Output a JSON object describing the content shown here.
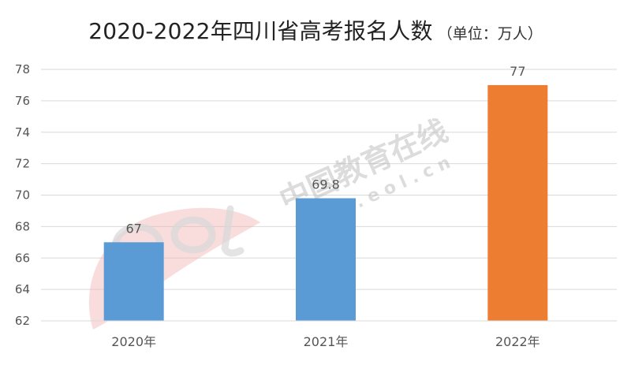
{
  "title": "2020-2022年四川省高考报名人数",
  "unit_note": "（单位：万人）",
  "watermark": {
    "cn": "中国教育在线",
    "url": "w w w . e o l . c n",
    "logo_text": "eol"
  },
  "chart_data": {
    "type": "bar",
    "categories": [
      "2020年",
      "2021年",
      "2022年"
    ],
    "values": [
      67,
      69.8,
      77
    ],
    "data_labels": [
      "67",
      "69.8",
      "77"
    ],
    "colors": [
      "#5b9bd5",
      "#5b9bd5",
      "#ed7d31"
    ],
    "ylim": [
      62,
      78
    ],
    "yticks": [
      "62",
      "64",
      "66",
      "68",
      "70",
      "72",
      "74",
      "76",
      "78"
    ],
    "xlabel": "",
    "ylabel": "",
    "grid": true
  }
}
